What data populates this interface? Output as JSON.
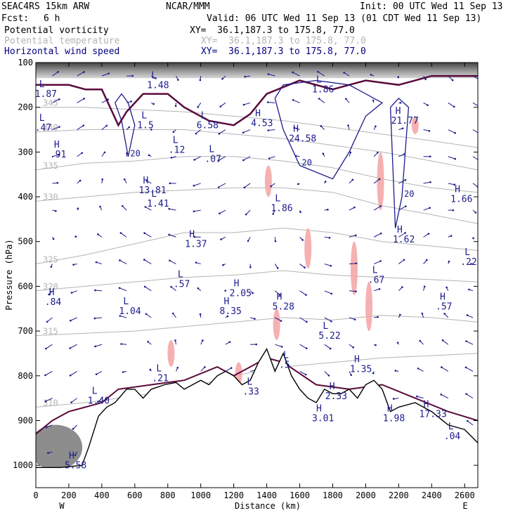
{
  "header": {
    "model": "SEAC4RS 15km ARW",
    "org": "NCAR/MMM",
    "init": "Init: 00 UTC Wed 11 Sep 13",
    "fcst_label": "Fcst:",
    "fcst_value": "6 h",
    "valid": "Valid: 06 UTC Wed 11 Sep 13 (01 CDT Wed 11 Sep 13)",
    "fields": [
      {
        "name": "Potential vorticity",
        "xy": "XY=  36.1,187.3 to 175.8, 77.0",
        "color": "#000000"
      },
      {
        "name": "Potential temperature",
        "xy": "XY=  36.1,187.3 to 175.8, 77.0",
        "color": "#b4b4b4"
      },
      {
        "name": "Horizontal wind speed",
        "xy": "XY=  36.1,187.3 to 175.8, 77.0",
        "color": "#000080"
      }
    ]
  },
  "chart_data": {
    "type": "vertical cross-section",
    "xlabel": "Distance (km)",
    "ylabel": "Pressure (hPa)",
    "xlim": [
      0,
      2680
    ],
    "ylim": [
      1050,
      100
    ],
    "x_ticks": [
      "0",
      "200",
      "400",
      "600",
      "800",
      "1000",
      "1200",
      "1400",
      "1600",
      "1800",
      "2000",
      "2200",
      "2400",
      "2600"
    ],
    "y_ticks": [
      "100",
      "200",
      "300",
      "400",
      "500",
      "600",
      "700",
      "800",
      "900",
      "1000"
    ],
    "x_end_labels": {
      "left": "W",
      "right": "E"
    },
    "colors": {
      "pv_shading": "#505050",
      "pv_contour": "#5a0a3a",
      "theta": "#b4b4b4",
      "wind": "#1a1a8c",
      "pink": "#f4a8a8",
      "terrain": "#000000"
    },
    "theta_contours": [
      {
        "label": "310",
        "points": [
          [
            0,
            870
          ],
          [
            300,
            860
          ],
          [
            600,
            845
          ],
          [
            900,
            830
          ],
          [
            1200,
            800
          ],
          [
            1500,
            780
          ],
          [
            1800,
            770
          ],
          [
            2100,
            760
          ],
          [
            2400,
            755
          ],
          [
            2680,
            750
          ]
        ]
      },
      {
        "label": "315",
        "points": [
          [
            0,
            710
          ],
          [
            300,
            705
          ],
          [
            600,
            700
          ],
          [
            900,
            690
          ],
          [
            1200,
            680
          ],
          [
            1500,
            670
          ],
          [
            1800,
            675
          ],
          [
            2100,
            665
          ],
          [
            2400,
            670
          ],
          [
            2680,
            680
          ]
        ]
      },
      {
        "label": "320",
        "points": [
          [
            0,
            610
          ],
          [
            300,
            600
          ],
          [
            600,
            590
          ],
          [
            900,
            580
          ],
          [
            1200,
            575
          ],
          [
            1500,
            565
          ],
          [
            1800,
            575
          ],
          [
            2100,
            580
          ],
          [
            2400,
            585
          ],
          [
            2680,
            590
          ]
        ]
      },
      {
        "label": "325",
        "points": [
          [
            0,
            550
          ],
          [
            300,
            530
          ],
          [
            600,
            505
          ],
          [
            900,
            480
          ],
          [
            1200,
            480
          ],
          [
            1500,
            470
          ],
          [
            1800,
            480
          ],
          [
            2100,
            500
          ],
          [
            2400,
            510
          ],
          [
            2680,
            520
          ]
        ]
      },
      {
        "label": "330",
        "points": [
          [
            0,
            410
          ],
          [
            300,
            400
          ],
          [
            600,
            390
          ],
          [
            900,
            385
          ],
          [
            1200,
            380
          ],
          [
            1500,
            380
          ],
          [
            1800,
            390
          ],
          [
            2100,
            420
          ],
          [
            2400,
            440
          ],
          [
            2680,
            460
          ]
        ]
      },
      {
        "label": "335",
        "points": [
          [
            0,
            340
          ],
          [
            300,
            325
          ],
          [
            600,
            320
          ],
          [
            900,
            310
          ],
          [
            1200,
            310
          ],
          [
            1500,
            320
          ],
          [
            1800,
            335
          ],
          [
            2100,
            360
          ],
          [
            2400,
            380
          ],
          [
            2680,
            390
          ]
        ]
      },
      {
        "label": "340",
        "points": [
          [
            0,
            255
          ],
          [
            300,
            250
          ],
          [
            600,
            250
          ],
          [
            900,
            250
          ],
          [
            1200,
            260
          ],
          [
            1500,
            270
          ],
          [
            1800,
            285
          ],
          [
            2100,
            300
          ],
          [
            2400,
            320
          ],
          [
            2680,
            340
          ]
        ]
      },
      {
        "label": "345",
        "points": [
          [
            0,
            200
          ],
          [
            300,
            200
          ],
          [
            600,
            205
          ],
          [
            900,
            210
          ],
          [
            1200,
            220
          ],
          [
            1500,
            230
          ],
          [
            1800,
            245
          ],
          [
            2100,
            260
          ],
          [
            2400,
            275
          ],
          [
            2680,
            290
          ]
        ]
      }
    ],
    "terrain": [
      [
        0,
        1005
      ],
      [
        150,
        1005
      ],
      [
        280,
        1000
      ],
      [
        320,
        960
      ],
      [
        380,
        890
      ],
      [
        430,
        870
      ],
      [
        480,
        860
      ],
      [
        550,
        830
      ],
      [
        600,
        830
      ],
      [
        650,
        850
      ],
      [
        700,
        830
      ],
      [
        780,
        820
      ],
      [
        850,
        815
      ],
      [
        900,
        830
      ],
      [
        950,
        820
      ],
      [
        1000,
        810
      ],
      [
        1050,
        820
      ],
      [
        1100,
        800
      ],
      [
        1150,
        790
      ],
      [
        1200,
        800
      ],
      [
        1250,
        820
      ],
      [
        1300,
        810
      ],
      [
        1350,
        770
      ],
      [
        1400,
        740
      ],
      [
        1450,
        790
      ],
      [
        1500,
        750
      ],
      [
        1550,
        800
      ],
      [
        1600,
        830
      ],
      [
        1650,
        850
      ],
      [
        1700,
        860
      ],
      [
        1750,
        830
      ],
      [
        1800,
        840
      ],
      [
        1850,
        840
      ],
      [
        1900,
        830
      ],
      [
        1950,
        850
      ],
      [
        2000,
        820
      ],
      [
        2050,
        810
      ],
      [
        2100,
        830
      ],
      [
        2150,
        880
      ],
      [
        2200,
        870
      ],
      [
        2300,
        860
      ],
      [
        2400,
        880
      ],
      [
        2500,
        910
      ],
      [
        2600,
        920
      ],
      [
        2680,
        950
      ]
    ],
    "pv_dynamic_tropopause": [
      [
        0,
        150
      ],
      [
        200,
        150
      ],
      [
        300,
        160
      ],
      [
        400,
        160
      ],
      [
        500,
        240
      ],
      [
        550,
        210
      ],
      [
        650,
        170
      ],
      [
        800,
        170
      ],
      [
        900,
        200
      ],
      [
        1050,
        230
      ],
      [
        1200,
        240
      ],
      [
        1300,
        215
      ],
      [
        1400,
        170
      ],
      [
        1600,
        140
      ],
      [
        1800,
        160
      ],
      [
        1900,
        150
      ],
      [
        2000,
        140
      ],
      [
        2200,
        150
      ],
      [
        2400,
        130
      ],
      [
        2680,
        130
      ]
    ],
    "pv_low_contour": [
      [
        0,
        930
      ],
      [
        100,
        900
      ],
      [
        200,
        880
      ],
      [
        300,
        870
      ],
      [
        400,
        860
      ],
      [
        500,
        830
      ],
      [
        700,
        820
      ],
      [
        900,
        810
      ],
      [
        1100,
        780
      ],
      [
        1200,
        800
      ],
      [
        1300,
        780
      ],
      [
        1400,
        760
      ],
      [
        1500,
        770
      ],
      [
        1700,
        820
      ],
      [
        1900,
        830
      ],
      [
        2100,
        820
      ],
      [
        2300,
        850
      ],
      [
        2500,
        880
      ],
      [
        2680,
        900
      ]
    ],
    "wind_contours": [
      {
        "label": "20",
        "points": [
          [
            480,
            190
          ],
          [
            520,
            230
          ],
          [
            560,
            310
          ],
          [
            600,
            240
          ],
          [
            560,
            190
          ],
          [
            520,
            170
          ],
          [
            480,
            190
          ]
        ]
      },
      {
        "label": "20",
        "points": [
          [
            1450,
            180
          ],
          [
            1500,
            250
          ],
          [
            1600,
            330
          ],
          [
            1800,
            360
          ],
          [
            1900,
            300
          ],
          [
            2000,
            220
          ],
          [
            2100,
            190
          ],
          [
            1900,
            150
          ],
          [
            1700,
            140
          ],
          [
            1500,
            150
          ],
          [
            1450,
            180
          ]
        ]
      },
      {
        "label": "20",
        "points": [
          [
            2150,
            200
          ],
          [
            2180,
            470
          ],
          [
            2220,
            400
          ],
          [
            2260,
            200
          ],
          [
            2200,
            180
          ],
          [
            2150,
            200
          ]
        ]
      }
    ],
    "extrema_labels": [
      {
        "kind": "L",
        "value": "1.87",
        "x": 20,
        "p": 155
      },
      {
        "kind": "L",
        "value": ".47",
        "x": 20,
        "p": 230
      },
      {
        "kind": "H",
        "value": ".91",
        "x": 110,
        "p": 290
      },
      {
        "kind": "L",
        "value": "1.5",
        "x": 640,
        "p": 225
      },
      {
        "kind": "L",
        "value": "6.58",
        "x": 1000,
        "p": 225
      },
      {
        "kind": "H",
        "value": "4.53",
        "x": 1330,
        "p": 220
      },
      {
        "kind": "H",
        "value": "24.58",
        "x": 1560,
        "p": 255
      },
      {
        "kind": "H",
        "value": "21.77",
        "x": 2180,
        "p": 215
      },
      {
        "kind": "L",
        "value": "1.86",
        "x": 1700,
        "p": 145
      },
      {
        "kind": "L",
        "value": "1.48",
        "x": 700,
        "p": 135
      },
      {
        "kind": "H",
        "value": "13.81",
        "x": 650,
        "p": 370
      },
      {
        "kind": "L",
        "value": "1.41",
        "x": 700,
        "p": 400
      },
      {
        "kind": "L",
        "value": ".12",
        "x": 830,
        "p": 280
      },
      {
        "kind": "L",
        "value": ".07",
        "x": 1050,
        "p": 300
      },
      {
        "kind": "L",
        "value": "1.86",
        "x": 1450,
        "p": 410
      },
      {
        "kind": "H",
        "value": "1.37",
        "x": 930,
        "p": 490
      },
      {
        "kind": "L",
        "value": ".57",
        "x": 860,
        "p": 580
      },
      {
        "kind": "H",
        "value": "2.05",
        "x": 1200,
        "p": 600
      },
      {
        "kind": "H",
        "value": "8.35",
        "x": 1140,
        "p": 640
      },
      {
        "kind": "H",
        "value": "5.28",
        "x": 1460,
        "p": 630
      },
      {
        "kind": "L",
        "value": "5.22",
        "x": 1740,
        "p": 695
      },
      {
        "kind": "L",
        "value": "1.04",
        "x": 530,
        "p": 640
      },
      {
        "kind": "H",
        "value": ".84",
        "x": 80,
        "p": 620
      },
      {
        "kind": "H",
        "value": "1.62",
        "x": 2190,
        "p": 480
      },
      {
        "kind": "L",
        "value": ".67",
        "x": 2040,
        "p": 570
      },
      {
        "kind": "L",
        "value": ".22",
        "x": 2600,
        "p": 530
      },
      {
        "kind": "H",
        "value": "1.66",
        "x": 2540,
        "p": 390
      },
      {
        "kind": "H",
        "value": ".57",
        "x": 2450,
        "p": 630
      },
      {
        "kind": "H",
        "value": "1.35",
        "x": 1930,
        "p": 770
      },
      {
        "kind": "H",
        "value": "2.33",
        "x": 1780,
        "p": 830
      },
      {
        "kind": "H",
        "value": "3.01",
        "x": 1700,
        "p": 880
      },
      {
        "kind": "L",
        "value": "1.40",
        "x": 340,
        "p": 840
      },
      {
        "kind": "L",
        "value": ".21",
        "x": 730,
        "p": 790
      },
      {
        "kind": "H",
        "value": "1.98",
        "x": 2130,
        "p": 880
      },
      {
        "kind": "H",
        "value": "17.33",
        "x": 2350,
        "p": 870
      },
      {
        "kind": "L",
        "value": ".04",
        "x": 2500,
        "p": 920
      },
      {
        "kind": "L",
        "value": ".33",
        "x": 1280,
        "p": 820
      },
      {
        "kind": "H",
        "value": "5.58",
        "x": 200,
        "p": 985
      },
      {
        "kind": "L",
        "value": ".5",
        "x": 1500,
        "p": 760
      }
    ]
  }
}
